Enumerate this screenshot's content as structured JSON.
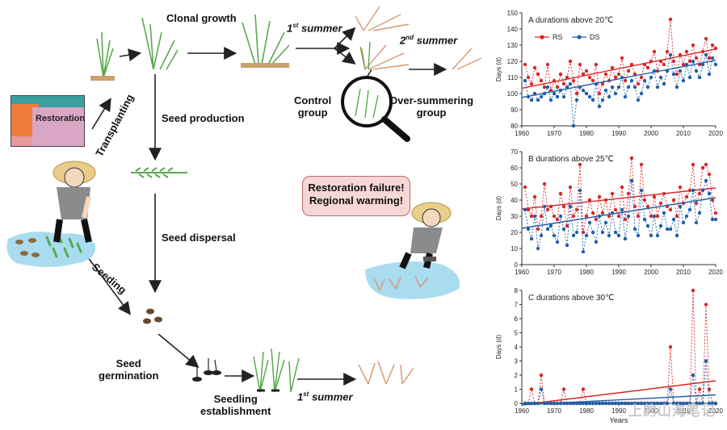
{
  "diagram": {
    "clonal_growth": "Clonal growth",
    "first_summer_top": "1",
    "first_summer_top_sup": "st",
    "first_summer_top_word": " summer",
    "second_summer": "2",
    "second_summer_sup": "nd",
    "second_summer_word": " summer",
    "control_group": "Control\ngroup",
    "over_summering": "Over-summering\ngroup",
    "transplanting": "Transplanting",
    "restoration_inset": "Restoration",
    "seed_production": "Seed production",
    "seed_dispersal": "Seed dispersal",
    "seeding": "Seeding",
    "seed_germination": "Seed\ngermination",
    "seedling_establishment": "Seedling\nestablishment",
    "first_summer_bottom": "1",
    "first_summer_bottom_sup": "st",
    "first_summer_bottom_word": " summer",
    "bubble_line1": "Restoration failure!",
    "bubble_line2": "Regional warming!"
  },
  "colors": {
    "rs": "#d62728",
    "ds": "#1f5fa8",
    "water": "#a9dcef",
    "plant": "#5aa84f",
    "dry_plant": "#d79b76"
  },
  "chart_data": [
    {
      "type": "line",
      "title": "A  durations above 20℃",
      "ylabel": "Days (d)",
      "xlabel": "",
      "xlim": [
        1960,
        2020
      ],
      "ylim": [
        80,
        150
      ],
      "yticks": [
        80,
        90,
        100,
        110,
        120,
        130,
        140,
        150
      ],
      "xticks": [
        1960,
        1970,
        1980,
        1990,
        2000,
        2010,
        2020
      ],
      "legend": [
        "RS",
        "DS"
      ],
      "legend_position": "top-left",
      "x": [
        1961,
        1962,
        1963,
        1964,
        1965,
        1966,
        1967,
        1968,
        1969,
        1970,
        1971,
        1972,
        1973,
        1974,
        1975,
        1976,
        1977,
        1978,
        1979,
        1980,
        1981,
        1982,
        1983,
        1984,
        1985,
        1986,
        1987,
        1988,
        1989,
        1990,
        1991,
        1992,
        1993,
        1994,
        1995,
        1996,
        1997,
        1998,
        1999,
        2000,
        2001,
        2002,
        2003,
        2004,
        2005,
        2006,
        2007,
        2008,
        2009,
        2010,
        2011,
        2012,
        2013,
        2014,
        2015,
        2016,
        2017,
        2018,
        2019,
        2020
      ],
      "series": [
        {
          "name": "RS",
          "values": [
            118,
            110,
            106,
            116,
            112,
            108,
            104,
            118,
            102,
            108,
            104,
            112,
            106,
            110,
            120,
            108,
            100,
            118,
            112,
            114,
            110,
            108,
            118,
            100,
            106,
            112,
            108,
            116,
            110,
            112,
            122,
            108,
            114,
            118,
            112,
            106,
            110,
            118,
            116,
            120,
            126,
            114,
            120,
            118,
            126,
            146,
            120,
            112,
            124,
            118,
            126,
            120,
            130,
            122,
            118,
            126,
            134,
            122,
            130,
            128
          ],
          "trend": [
            103.3,
            127.6
          ]
        },
        {
          "name": "DS",
          "values": [
            108,
            98,
            96,
            100,
            96,
            98,
            100,
            104,
            96,
            100,
            98,
            102,
            98,
            104,
            106,
            80,
            96,
            104,
            102,
            100,
            98,
            96,
            106,
            92,
            96,
            102,
            98,
            104,
            100,
            104,
            110,
            98,
            104,
            108,
            104,
            96,
            100,
            108,
            104,
            110,
            114,
            104,
            110,
            106,
            114,
            124,
            112,
            104,
            114,
            108,
            118,
            110,
            120,
            114,
            110,
            118,
            124,
            112,
            122,
            118
          ],
          "trend": [
            97.6,
            120.6
          ]
        }
      ]
    },
    {
      "type": "line",
      "title": "B  durations above 25℃",
      "ylabel": "Days (d)",
      "xlabel": "",
      "xlim": [
        1960,
        2020
      ],
      "ylim": [
        0,
        70
      ],
      "yticks": [
        0,
        10,
        20,
        30,
        40,
        50,
        60,
        70
      ],
      "xticks": [
        1960,
        1970,
        1980,
        1990,
        2000,
        2010,
        2020
      ],
      "x": [
        1961,
        1962,
        1963,
        1964,
        1965,
        1966,
        1967,
        1968,
        1969,
        1970,
        1971,
        1972,
        1973,
        1974,
        1975,
        1976,
        1977,
        1978,
        1979,
        1980,
        1981,
        1982,
        1983,
        1984,
        1985,
        1986,
        1987,
        1988,
        1989,
        1990,
        1991,
        1992,
        1993,
        1994,
        1995,
        1996,
        1997,
        1998,
        1999,
        2000,
        2001,
        2002,
        2003,
        2004,
        2005,
        2006,
        2007,
        2008,
        2009,
        2010,
        2011,
        2012,
        2013,
        2014,
        2015,
        2016,
        2017,
        2018,
        2019,
        2020
      ],
      "series": [
        {
          "name": "RS",
          "values": [
            48,
            34,
            30,
            42,
            22,
            30,
            50,
            34,
            36,
            30,
            28,
            44,
            36,
            24,
            48,
            30,
            34,
            62,
            20,
            30,
            40,
            32,
            28,
            42,
            32,
            40,
            30,
            44,
            34,
            30,
            48,
            28,
            44,
            66,
            36,
            30,
            62,
            40,
            36,
            30,
            42,
            30,
            38,
            44,
            36,
            34,
            40,
            30,
            48,
            38,
            42,
            46,
            62,
            38,
            44,
            60,
            62,
            56,
            40,
            32
          ],
          "trend": [
            34.5,
            47.5
          ]
        },
        {
          "name": "DS",
          "values": [
            34,
            22,
            16,
            30,
            10,
            18,
            36,
            22,
            24,
            18,
            14,
            30,
            22,
            12,
            36,
            18,
            20,
            46,
            8,
            18,
            26,
            20,
            14,
            30,
            20,
            26,
            18,
            32,
            20,
            18,
            34,
            16,
            30,
            52,
            22,
            18,
            46,
            28,
            24,
            18,
            30,
            18,
            24,
            32,
            22,
            22,
            28,
            18,
            36,
            26,
            30,
            34,
            46,
            26,
            32,
            46,
            52,
            44,
            28,
            28
          ],
          "trend": [
            22.5,
            41.5
          ]
        }
      ]
    },
    {
      "type": "line",
      "title": "C  durations above 30℃",
      "ylabel": "Days (d)",
      "xlabel": "Years",
      "xlim": [
        1960,
        2020
      ],
      "ylim": [
        0,
        8
      ],
      "yticks": [
        0,
        1,
        2,
        3,
        4,
        5,
        6,
        7,
        8
      ],
      "xticks": [
        1960,
        1970,
        1980,
        1990,
        2000,
        2010,
        2020
      ],
      "x": [
        1961,
        1962,
        1963,
        1964,
        1965,
        1966,
        1967,
        1968,
        1969,
        1970,
        1971,
        1972,
        1973,
        1974,
        1975,
        1976,
        1977,
        1978,
        1979,
        1980,
        1981,
        1982,
        1983,
        1984,
        1985,
        1986,
        1987,
        1988,
        1989,
        1990,
        1991,
        1992,
        1993,
        1994,
        1995,
        1996,
        1997,
        1998,
        1999,
        2000,
        2001,
        2002,
        2003,
        2004,
        2005,
        2006,
        2007,
        2008,
        2009,
        2010,
        2011,
        2012,
        2013,
        2014,
        2015,
        2016,
        2017,
        2018,
        2019,
        2020
      ],
      "series": [
        {
          "name": "RS",
          "values": [
            0,
            0,
            1,
            0,
            0,
            2,
            0,
            0,
            0,
            0,
            0,
            0,
            1,
            0,
            0,
            0,
            0,
            0,
            1,
            0,
            0,
            0,
            0,
            0,
            0,
            0,
            0,
            0,
            0,
            0,
            0,
            0,
            0,
            0,
            0,
            0,
            0,
            0,
            0,
            0,
            0,
            0,
            0,
            0,
            0,
            4,
            0,
            0,
            0,
            0,
            0,
            0,
            8,
            0,
            1,
            0,
            7,
            1,
            0,
            0
          ],
          "trend": [
            -0.1,
            1.6
          ]
        },
        {
          "name": "DS",
          "values": [
            0,
            0,
            0,
            0,
            0,
            1,
            0,
            0,
            0,
            0,
            0,
            0,
            0,
            0,
            0,
            0,
            0,
            0,
            0,
            0,
            0,
            0,
            0,
            0,
            0,
            0,
            0,
            0,
            0,
            0,
            0,
            0,
            0,
            0,
            0,
            0,
            0,
            0,
            0,
            0,
            0,
            0,
            0,
            0,
            0,
            1,
            0,
            0,
            0,
            0,
            0,
            0,
            2,
            0,
            0,
            0,
            3,
            0,
            0,
            0
          ],
          "trend": [
            -0.1,
            0.6
          ]
        }
      ]
    }
  ],
  "watermark": "上的山海笔记"
}
